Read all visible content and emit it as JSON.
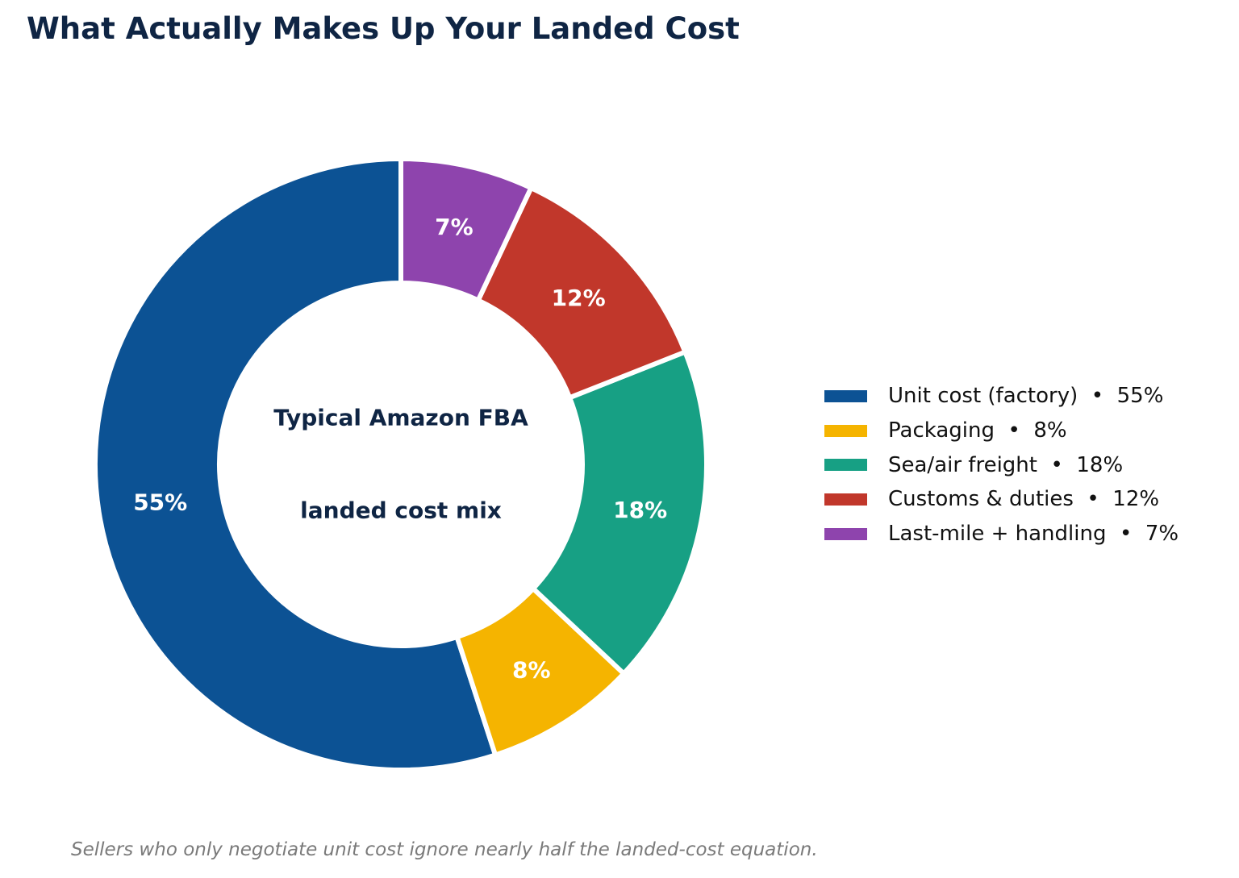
{
  "chart_data": {
    "type": "pie",
    "style": "donut",
    "title": "What Actually Makes Up Your Landed Cost",
    "center_label": [
      "Typical Amazon FBA",
      "landed cost mix"
    ],
    "start": "top",
    "direction": "counterclockwise",
    "slices": [
      {
        "label": "Unit cost (factory)",
        "value": 55,
        "value_label": "55%",
        "legend": "Unit cost (factory)  •  55%",
        "color": "#0c5294"
      },
      {
        "label": "Packaging",
        "value": 8,
        "value_label": "8%",
        "legend": "Packaging  •  8%",
        "color": "#f5b400"
      },
      {
        "label": "Sea/air freight",
        "value": 18,
        "value_label": "18%",
        "legend": "Sea/air freight  •  18%",
        "color": "#17a084"
      },
      {
        "label": "Customs & duties",
        "value": 12,
        "value_label": "12%",
        "legend": "Customs & duties  •  12%",
        "color": "#c1372b"
      },
      {
        "label": "Last-mile + handling",
        "value": 7,
        "value_label": "7%",
        "legend": "Last-mile + handling  •  7%",
        "color": "#8e44ad"
      }
    ],
    "legend_position": "right",
    "footnote": "Sellers who only negotiate unit cost ignore nearly half the landed-cost equation."
  },
  "colors": {
    "title": "#0f2544",
    "center_text": "#0f2544",
    "slice_label": "#ffffff",
    "footnote": "#7a7a7a",
    "separator": "#ffffff"
  }
}
